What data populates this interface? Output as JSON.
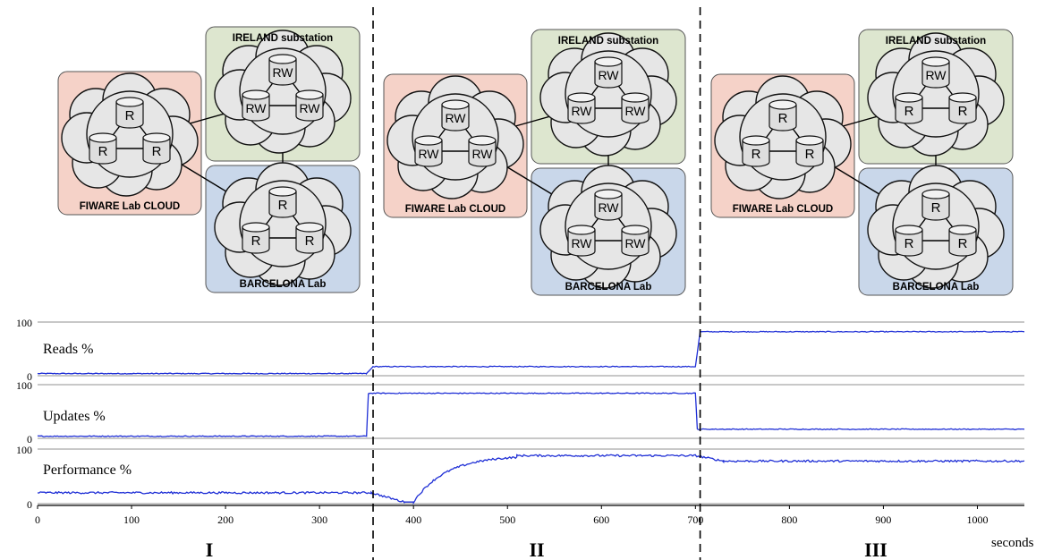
{
  "colors": {
    "cloud_region": "#f5d2c8",
    "ireland_region": "#dde6cf",
    "barcelona_region": "#c9d7ea",
    "cloud_fill": "#e6e6e6",
    "node_fill": "#dedede",
    "series": "#1f2fd6",
    "grid": "#909090",
    "divider": "#000000"
  },
  "topology": {
    "regions": {
      "cloud": "FIWARE Lab CLOUD",
      "ireland": "IRELAND substation",
      "barcelona": "BARCELONA Lab"
    },
    "phases": [
      {
        "cloud": [
          "R",
          "R",
          "R"
        ],
        "ireland": [
          "RW",
          "RW",
          "RW"
        ],
        "barcelona": [
          "R",
          "R",
          "R"
        ]
      },
      {
        "cloud": [
          "RW",
          "RW",
          "RW"
        ],
        "ireland": [
          "RW",
          "RW",
          "RW"
        ],
        "barcelona": [
          "RW",
          "RW",
          "RW"
        ]
      },
      {
        "cloud": [
          "R",
          "R",
          "R"
        ],
        "ireland": [
          "RW",
          "R",
          "R"
        ],
        "barcelona": [
          "R",
          "R",
          "R"
        ]
      }
    ]
  },
  "chart_data": {
    "type": "line",
    "x_range": [
      0,
      1050
    ],
    "x_ticks": [
      0,
      100,
      200,
      300,
      400,
      500,
      600,
      700,
      800,
      900,
      1000
    ],
    "x_unit_label": "seconds",
    "phase_boundaries": [
      357,
      705
    ],
    "phase_labels": [
      "I",
      "II",
      "III"
    ],
    "panels": [
      {
        "label": "Reads %",
        "y_range": [
          0,
          100
        ],
        "y_ticks": [
          0,
          100
        ],
        "segments": [
          {
            "x": [
              0,
              350
            ],
            "y": 4
          },
          {
            "x": [
              350,
              357
            ],
            "y": [
              4,
              17
            ]
          },
          {
            "x": [
              357,
              700
            ],
            "y": 17
          },
          {
            "x": [
              700,
              705
            ],
            "y": [
              17,
              82
            ]
          },
          {
            "x": [
              705,
              1050
            ],
            "y": 82
          }
        ]
      },
      {
        "label": "Updates %",
        "y_range": [
          0,
          100
        ],
        "y_ticks": [
          0,
          100
        ],
        "segments": [
          {
            "x": [
              0,
              350
            ],
            "y": 4
          },
          {
            "x": [
              350,
              352
            ],
            "y": [
              4,
              84
            ]
          },
          {
            "x": [
              352,
              700
            ],
            "y": 84
          },
          {
            "x": [
              700,
              702
            ],
            "y": [
              84,
              17
            ]
          },
          {
            "x": [
              702,
              1050
            ],
            "y": 17
          }
        ]
      },
      {
        "label": "Performance %",
        "y_range": [
          0,
          100
        ],
        "y_ticks": [
          0,
          100
        ],
        "segments": [
          {
            "x": [
              0,
              355
            ],
            "y": [
              20,
              20
            ]
          },
          {
            "x": [
              355,
              390
            ],
            "y": [
              20,
              3
            ]
          },
          {
            "x": [
              390,
              400
            ],
            "y": [
              3,
              3
            ]
          },
          {
            "x": [
              400,
              510
            ],
            "y": [
              3,
              85
            ],
            "shape": "saturating"
          },
          {
            "x": [
              510,
              700
            ],
            "y": [
              88,
              88
            ]
          },
          {
            "x": [
              700,
              730
            ],
            "y": [
              88,
              78
            ]
          },
          {
            "x": [
              730,
              1050
            ],
            "y": [
              78,
              78
            ]
          }
        ]
      }
    ]
  }
}
